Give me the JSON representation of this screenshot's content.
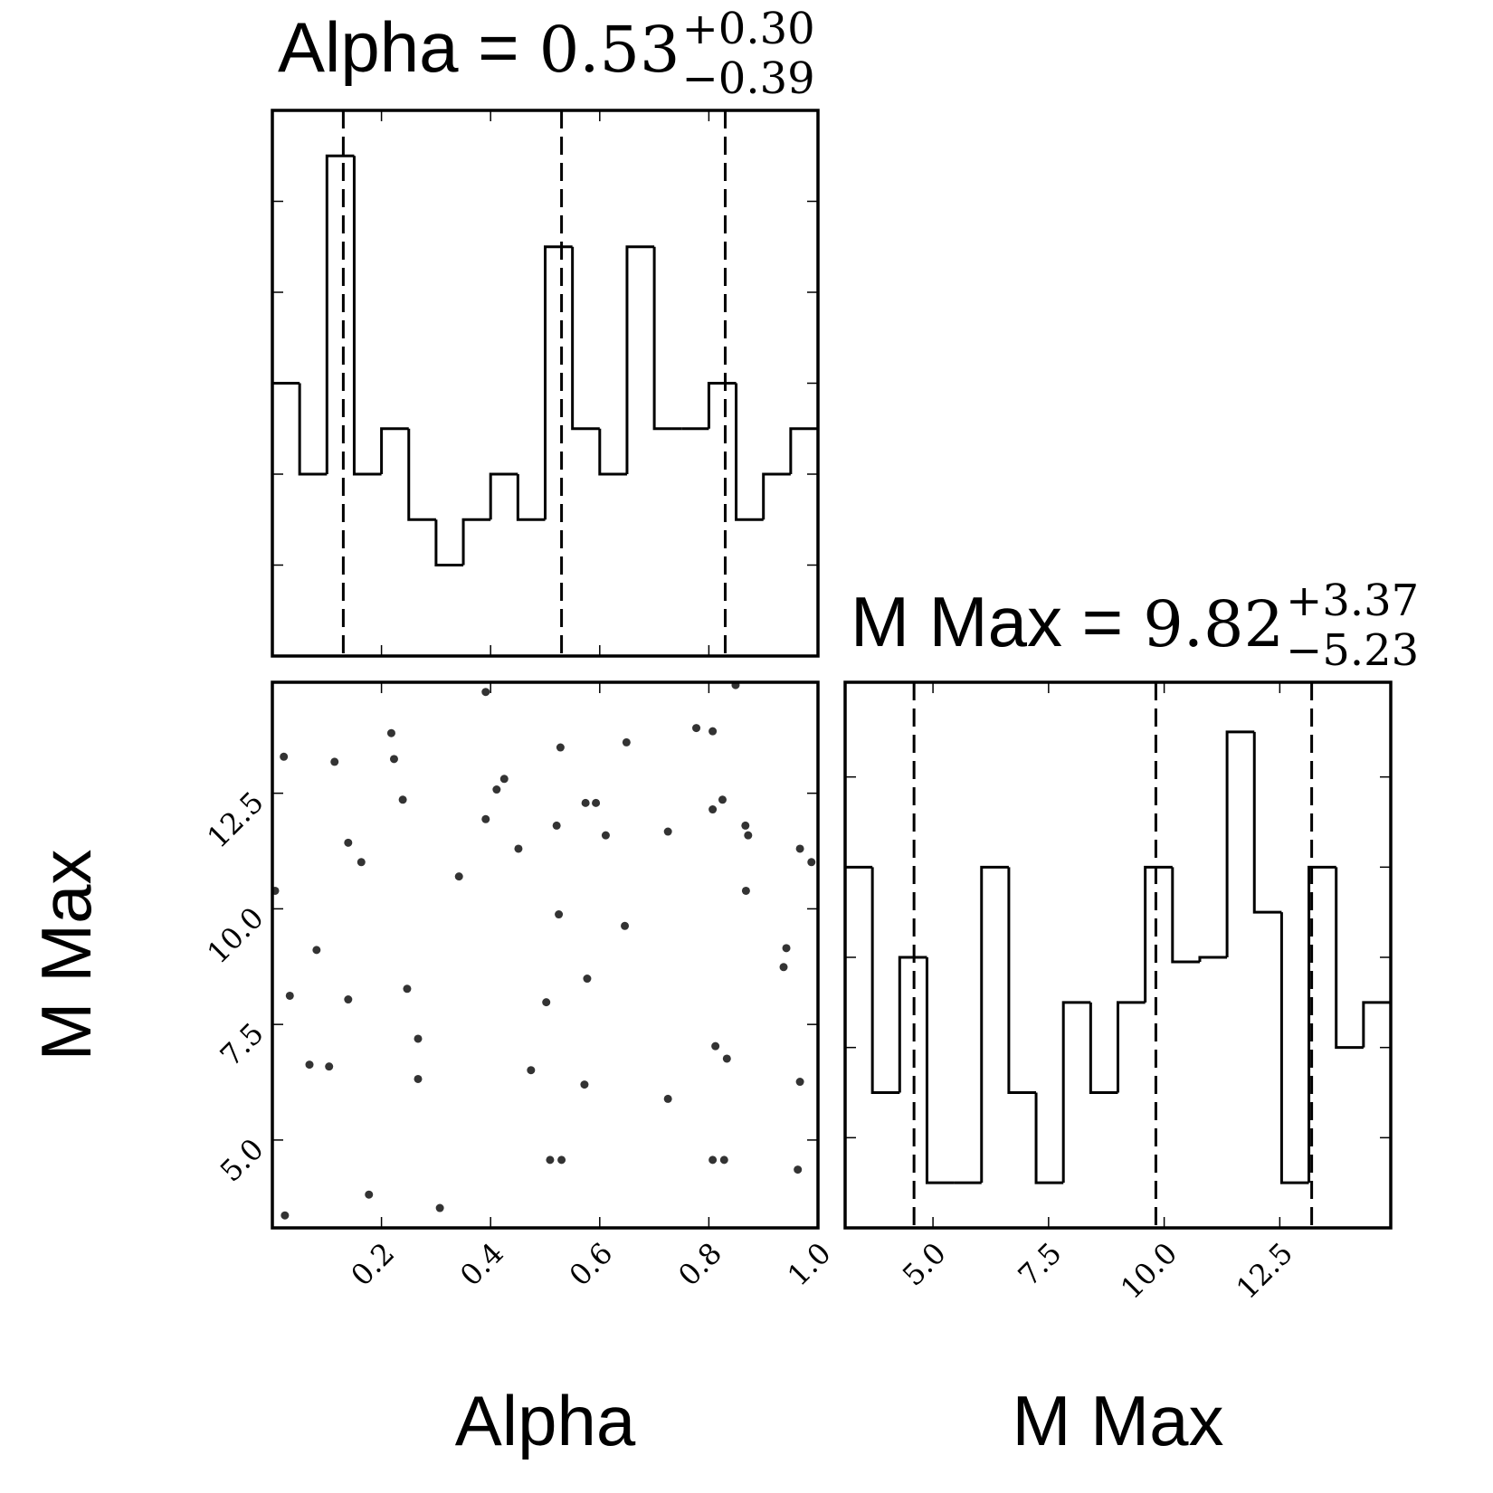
{
  "chart_data": [
    {
      "type": "histogram",
      "title": {
        "name": "Alpha =",
        "value": "0.53",
        "upper": "+0.30",
        "lower": "−0.39"
      },
      "bins": [
        0,
        0.05,
        0.1,
        0.15,
        0.2,
        0.25,
        0.3,
        0.35,
        0.4,
        0.45,
        0.5,
        0.55,
        0.6,
        0.65,
        0.7,
        0.75,
        0.8,
        0.85,
        0.9,
        0.95,
        1
      ],
      "values": [
        6,
        4,
        11,
        4,
        5,
        3,
        2,
        3,
        4,
        3,
        9,
        5,
        4,
        9,
        5,
        5,
        6,
        3,
        4,
        5
      ],
      "quantiles": [
        0.13,
        0.53,
        0.83
      ],
      "xlim": [
        0,
        1
      ],
      "ylim": [
        0,
        12
      ],
      "xticks": [
        0.2,
        0.4,
        0.6,
        0.8,
        {
          "value": 1,
          "label": "1.0"
        }
      ],
      "yticks": [
        2,
        4,
        6,
        8,
        10
      ],
      "color": "#000000"
    },
    {
      "type": "scatter",
      "xlabel": "Alpha",
      "ylabel": "M Max",
      "x": [
        0.114,
        0.218,
        0.223,
        0.239,
        0.163,
        0.139,
        0.021,
        0.005,
        0.081,
        0.032,
        0.139,
        0.247,
        0.267,
        0.068,
        0.104,
        0.267,
        0.023,
        0.177,
        0.307,
        0.411,
        0.391,
        0.425,
        0.451,
        0.521,
        0.342,
        0.528,
        0.649,
        0.574,
        0.593,
        0.611,
        0.807,
        0.825,
        0.867,
        0.872,
        0.868,
        0.777,
        0.807,
        0.646,
        0.577,
        0.502,
        0.474,
        0.572,
        0.725,
        0.833,
        0.812,
        0.509,
        0.53,
        0.807,
        0.828,
        0.963,
        0.937,
        0.942,
        0.988,
        0.967,
        0.849,
        0.391,
        0.967,
        0.525,
        0.725
      ],
      "y": [
        13.18,
        13.8,
        13.24,
        12.36,
        11.01,
        11.43,
        13.29,
        10.39,
        9.11,
        8.12,
        8.04,
        8.27,
        7.19,
        6.63,
        6.59,
        6.32,
        3.37,
        3.82,
        3.53,
        12.58,
        11.94,
        12.81,
        11.3,
        11.8,
        10.7,
        13.49,
        13.6,
        12.29,
        12.29,
        11.59,
        12.15,
        12.36,
        11.8,
        11.59,
        10.39,
        13.91,
        13.84,
        9.63,
        8.49,
        7.98,
        6.51,
        6.2,
        5.89,
        6.76,
        7.03,
        4.57,
        4.57,
        4.57,
        4.57,
        4.36,
        8.74,
        9.15,
        11.01,
        11.3,
        14.84,
        14.69,
        6.26,
        9.88,
        11.67
      ],
      "xlim": [
        0,
        1
      ],
      "ylim": [
        3.1,
        14.9
      ],
      "xticks": [
        0.2,
        0.4,
        0.6,
        0.8,
        {
          "value": 1,
          "label": "1.0"
        }
      ],
      "yticks": [
        {
          "value": 5,
          "label": "5.0"
        },
        {
          "value": 7.5,
          "label": "7.5"
        },
        {
          "value": 10,
          "label": "10.0"
        },
        {
          "value": 12.5,
          "label": "12.5"
        }
      ],
      "color": "#333333"
    },
    {
      "type": "histogram",
      "title": {
        "name": "M Max =",
        "value": "9.82",
        "upper": "+3.37",
        "lower": "−5.23"
      },
      "xlabel": "M Max",
      "bins": [
        3.1,
        3.69,
        4.28,
        4.87,
        5.46,
        6.05,
        6.64,
        7.23,
        7.82,
        8.41,
        9.0,
        9.59,
        10.18,
        10.77,
        11.36,
        11.95,
        12.54,
        13.13,
        13.72,
        14.31,
        14.9
      ],
      "values": [
        8,
        3,
        6,
        1,
        1,
        8,
        3,
        1,
        5,
        3,
        5,
        8,
        5.9,
        6,
        11,
        7,
        1,
        8,
        4,
        5
      ],
      "quantiles": [
        4.59,
        9.82,
        13.19
      ],
      "xlim": [
        3.1,
        14.9
      ],
      "ylim": [
        0,
        12.1
      ],
      "xticks": [
        {
          "value": 5,
          "label": "5.0"
        },
        {
          "value": 7.5,
          "label": "7.5"
        },
        {
          "value": 10,
          "label": "10.0"
        },
        {
          "value": 12.5,
          "label": "12.5"
        }
      ],
      "yticks": [
        2,
        4,
        6,
        8,
        10
      ],
      "color": "#000000"
    }
  ]
}
